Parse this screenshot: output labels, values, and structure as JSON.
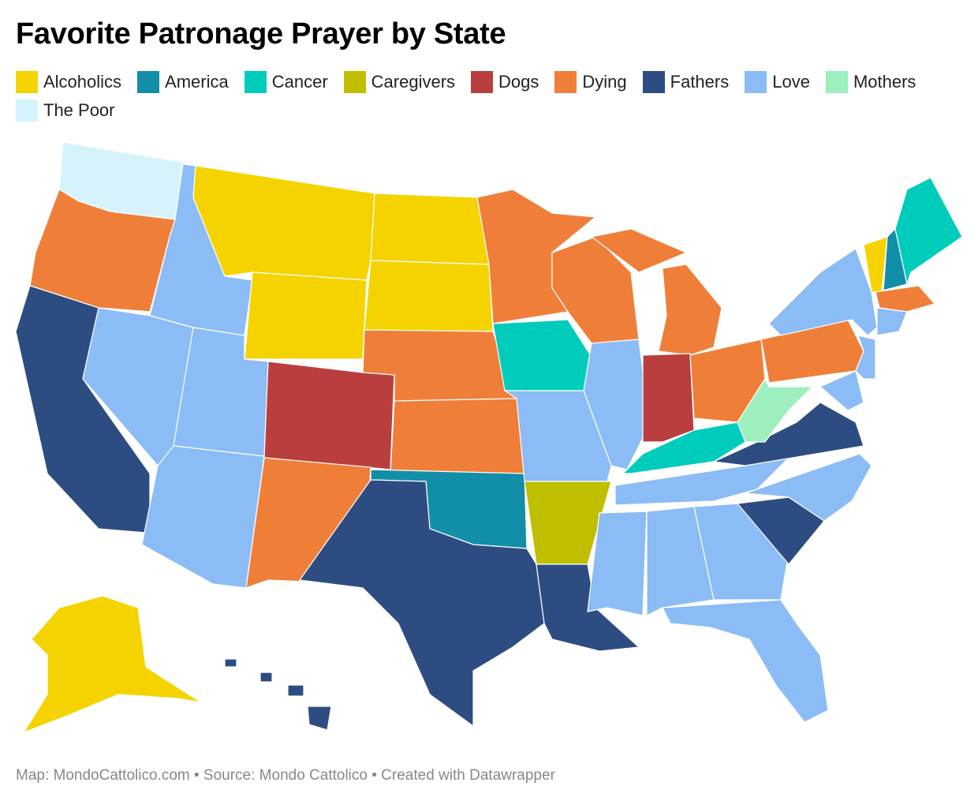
{
  "header": {
    "title": "Favorite Patronage Prayer by State"
  },
  "legend": [
    {
      "label": "Alcoholics",
      "color": "#f5d300"
    },
    {
      "label": "America",
      "color": "#138ea8"
    },
    {
      "label": "Cancer",
      "color": "#00ccbc"
    },
    {
      "label": "Caregivers",
      "color": "#bfbf00"
    },
    {
      "label": "Dogs",
      "color": "#bb3e3e"
    },
    {
      "label": "Dying",
      "color": "#ef7f38"
    },
    {
      "label": "Fathers",
      "color": "#2d4d82"
    },
    {
      "label": "Love",
      "color": "#8bbcf5"
    },
    {
      "label": "Mothers",
      "color": "#9eefbe"
    },
    {
      "label": "The Poor",
      "color": "#d6f3fc"
    }
  ],
  "regions": [
    "The Poor",
    "Dying",
    "Fathers",
    "Love",
    "Love",
    "Alcoholics",
    "Alcoholics",
    "Love",
    "Love",
    "Dogs",
    "Dying",
    "Alcoholics",
    "Alcoholics",
    "Dying",
    "Dying",
    "America",
    "Fathers",
    "Dying",
    "Cancer",
    "Love",
    "Caregivers",
    "Fathers",
    "Dying",
    "Love",
    "Dying",
    "Dogs",
    "Dying",
    "Cancer",
    "Love",
    "Love",
    "Love",
    "Love",
    "Love",
    "Fathers",
    "Love",
    "Fathers",
    "Mothers",
    "Dying",
    "Love",
    "Alcoholics",
    "America",
    "Cancer",
    "Dying",
    "Love",
    "Love",
    "Love",
    "Alcoholics",
    "Fathers"
  ],
  "footer": "Map: MondoCattolico.com • Source: Mondo Cattolico • Created with Datawrapper"
}
